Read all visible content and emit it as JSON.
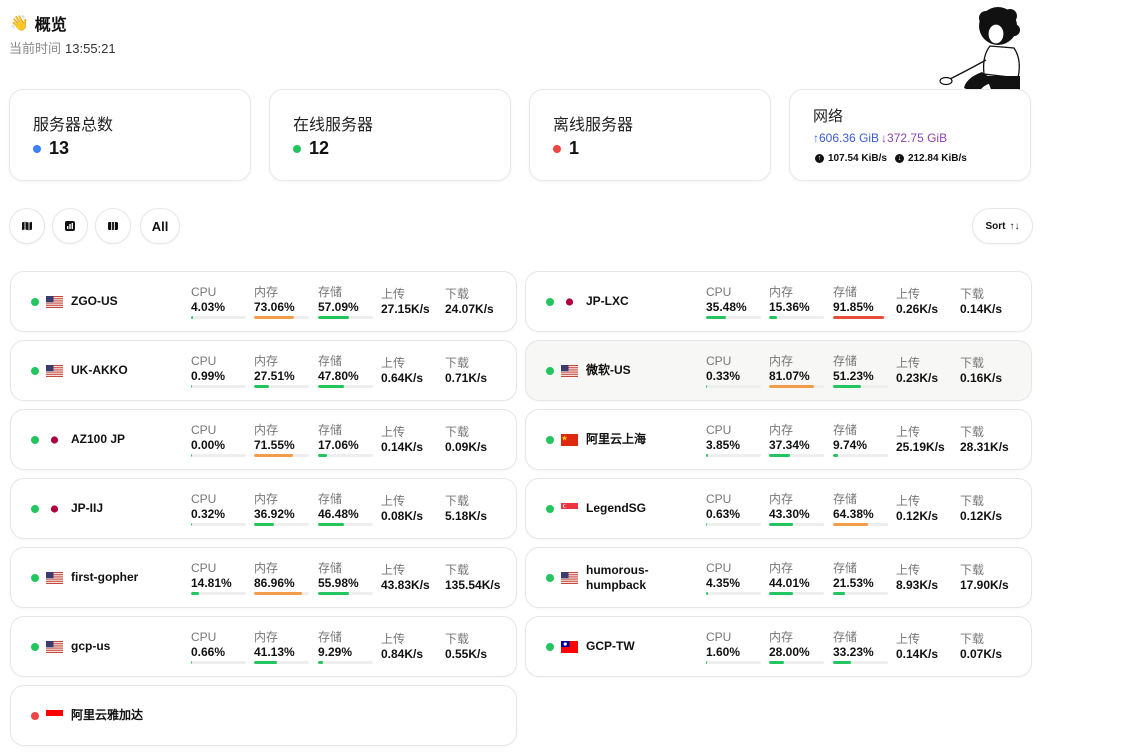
{
  "header": {
    "hand_icon": "waving-hand-icon",
    "title": "概览",
    "time_label": "当前时间",
    "time": "13:55:21"
  },
  "stats": {
    "total": {
      "label": "服务器总数",
      "value": "13",
      "color": "#3b82f6"
    },
    "online": {
      "label": "在线服务器",
      "value": "12",
      "color": "#22c55e"
    },
    "offline": {
      "label": "离线服务器",
      "value": "1",
      "color": "#ef4444"
    },
    "network": {
      "label": "网络",
      "upload_total": "↑606.36 GiB",
      "download_total": "↓372.75 GiB",
      "upload_speed": "107.54 KiB/s",
      "download_speed": "212.84 KiB/s"
    }
  },
  "toolbar": {
    "map_icon": "map-icon",
    "chart_icon": "chart-icon",
    "columns_icon": "columns-icon",
    "all_label": "All",
    "sort_label": "Sort",
    "sort_icon": "sort-arrows-icon"
  },
  "colors": {
    "online": "#22c55e",
    "offline": "#ef4444",
    "bar_normal": "#22c55e",
    "bar_warn": "#f39c4a",
    "bar_danger": "#e74c3c"
  },
  "metric_labels": {
    "cpu": "CPU",
    "mem": "内存",
    "disk": "存储",
    "up": "上传",
    "down": "下载"
  },
  "servers": [
    {
      "name": "ZGO-US",
      "flag": "us",
      "online": true,
      "cpu": "4.03%",
      "cpu_pct": 4.03,
      "mem": "73.06%",
      "mem_pct": 73.06,
      "disk": "57.09%",
      "disk_pct": 57.09,
      "up": "27.15K/s",
      "down": "24.07K/s"
    },
    {
      "name": "JP-LXC",
      "flag": "jp",
      "online": true,
      "cpu": "35.48%",
      "cpu_pct": 35.48,
      "mem": "15.36%",
      "mem_pct": 15.36,
      "disk": "91.85%",
      "disk_pct": 91.85,
      "up": "0.26K/s",
      "down": "0.14K/s"
    },
    {
      "name": "UK-AKKO",
      "flag": "us",
      "online": true,
      "cpu": "0.99%",
      "cpu_pct": 0.99,
      "mem": "27.51%",
      "mem_pct": 27.51,
      "disk": "47.80%",
      "disk_pct": 47.8,
      "up": "0.64K/s",
      "down": "0.71K/s"
    },
    {
      "name": "微软-US",
      "flag": "us",
      "online": true,
      "highlight": true,
      "cpu": "0.33%",
      "cpu_pct": 0.33,
      "mem": "81.07%",
      "mem_pct": 81.07,
      "disk": "51.23%",
      "disk_pct": 51.23,
      "up": "0.23K/s",
      "down": "0.16K/s"
    },
    {
      "name": "AZ100 JP",
      "flag": "jp",
      "online": true,
      "cpu": "0.00%",
      "cpu_pct": 0,
      "mem": "71.55%",
      "mem_pct": 71.55,
      "disk": "17.06%",
      "disk_pct": 17.06,
      "up": "0.14K/s",
      "down": "0.09K/s"
    },
    {
      "name": "阿里云上海",
      "flag": "cn",
      "online": true,
      "cpu": "3.85%",
      "cpu_pct": 3.85,
      "mem": "37.34%",
      "mem_pct": 37.34,
      "disk": "9.74%",
      "disk_pct": 9.74,
      "up": "25.19K/s",
      "down": "28.31K/s"
    },
    {
      "name": "JP-IIJ",
      "flag": "jp",
      "online": true,
      "cpu": "0.32%",
      "cpu_pct": 0.32,
      "mem": "36.92%",
      "mem_pct": 36.92,
      "disk": "46.48%",
      "disk_pct": 46.48,
      "up": "0.08K/s",
      "down": "5.18K/s"
    },
    {
      "name": "LegendSG",
      "flag": "sg",
      "online": true,
      "cpu": "0.63%",
      "cpu_pct": 0.63,
      "mem": "43.30%",
      "mem_pct": 43.3,
      "disk": "64.38%",
      "disk_pct": 64.38,
      "up": "0.12K/s",
      "down": "0.12K/s"
    },
    {
      "name": "first-gopher",
      "flag": "us",
      "online": true,
      "cpu": "14.81%",
      "cpu_pct": 14.81,
      "mem": "86.96%",
      "mem_pct": 86.96,
      "disk": "55.98%",
      "disk_pct": 55.98,
      "up": "43.83K/s",
      "down": "135.54K/s"
    },
    {
      "name": "humorous-humpback",
      "flag": "us",
      "online": true,
      "cpu": "4.35%",
      "cpu_pct": 4.35,
      "mem": "44.01%",
      "mem_pct": 44.01,
      "disk": "21.53%",
      "disk_pct": 21.53,
      "up": "8.93K/s",
      "down": "17.90K/s"
    },
    {
      "name": "gcp-us",
      "flag": "us",
      "online": true,
      "cpu": "0.66%",
      "cpu_pct": 0.66,
      "mem": "41.13%",
      "mem_pct": 41.13,
      "disk": "9.29%",
      "disk_pct": 9.29,
      "up": "0.84K/s",
      "down": "0.55K/s"
    },
    {
      "name": "GCP-TW",
      "flag": "tw",
      "online": true,
      "cpu": "1.60%",
      "cpu_pct": 1.6,
      "mem": "28.00%",
      "mem_pct": 28.0,
      "disk": "33.23%",
      "disk_pct": 33.23,
      "up": "0.14K/s",
      "down": "0.07K/s"
    },
    {
      "name": "阿里云雅加达",
      "flag": "id",
      "online": false
    }
  ]
}
